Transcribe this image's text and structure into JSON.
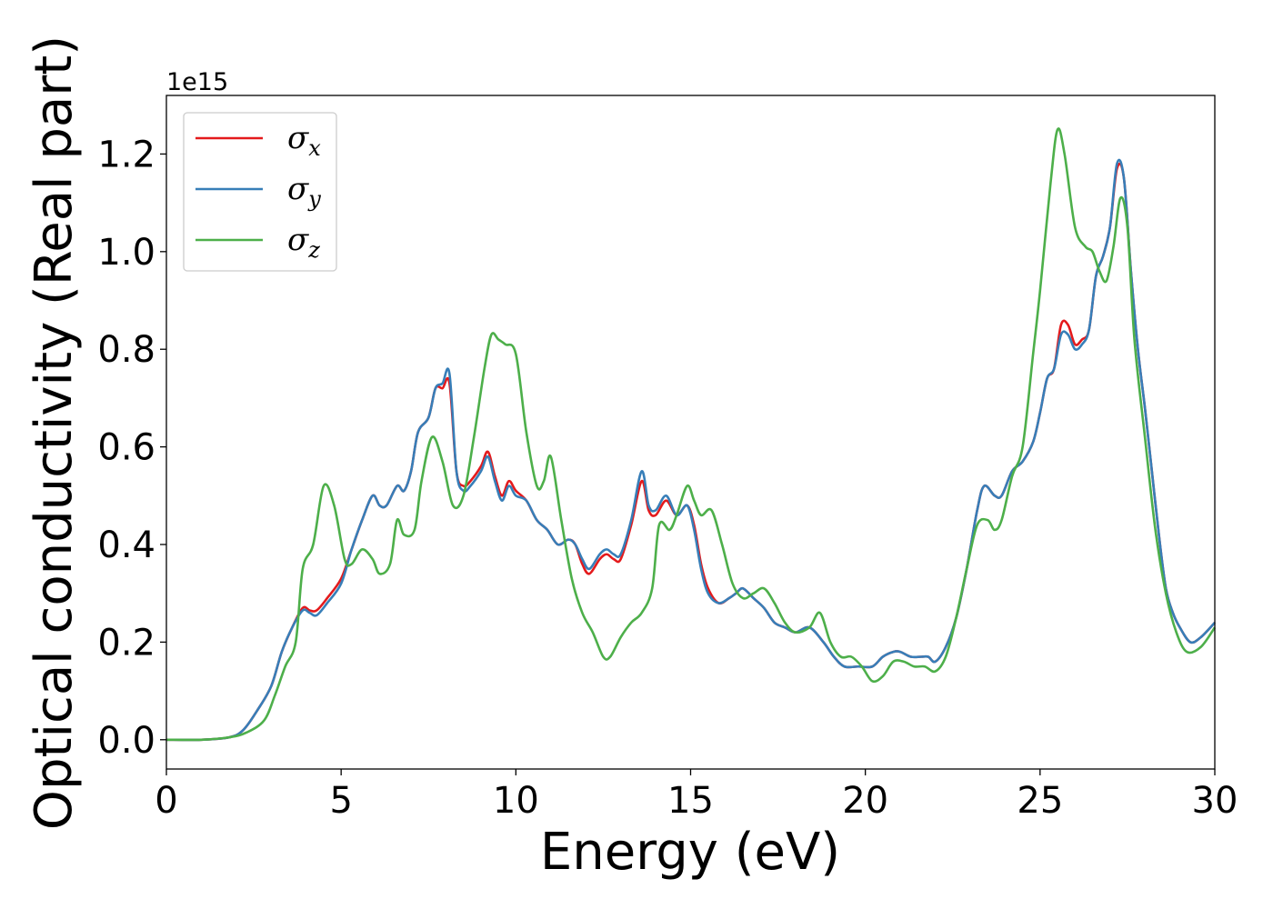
{
  "chart_data": {
    "type": "line",
    "xlabel": "Energy (eV)",
    "ylabel": "Optical conductivity (Real part)",
    "y_offset_label": "1e15",
    "xlim": [
      0,
      30
    ],
    "ylim": [
      -0.06,
      1.32
    ],
    "xticks": [
      0,
      5,
      10,
      15,
      20,
      25,
      30
    ],
    "yticks": [
      0.0,
      0.2,
      0.4,
      0.6,
      0.8,
      1.0,
      1.2
    ],
    "ytick_labels": [
      "0.0",
      "0.2",
      "0.4",
      "0.6",
      "0.8",
      "1.0",
      "1.2"
    ],
    "grid": false,
    "legend_position": "upper-left",
    "series": [
      {
        "name": "σx",
        "legend_base": "σ",
        "legend_sub": "x",
        "color": "#e41a1c",
        "x": [
          0,
          1,
          1.8,
          2.2,
          2.6,
          3.0,
          3.3,
          3.6,
          3.9,
          4.1,
          4.3,
          4.6,
          5.0,
          5.3,
          5.6,
          5.9,
          6.1,
          6.3,
          6.6,
          6.8,
          7.0,
          7.2,
          7.5,
          7.7,
          7.9,
          8.1,
          8.3,
          8.5,
          8.7,
          9.0,
          9.2,
          9.4,
          9.6,
          9.8,
          10.0,
          10.3,
          10.6,
          10.9,
          11.2,
          11.5,
          11.7,
          11.9,
          12.1,
          12.4,
          12.6,
          12.8,
          13.0,
          13.3,
          13.6,
          13.8,
          14.0,
          14.3,
          14.6,
          14.9,
          15.1,
          15.3,
          15.5,
          15.8,
          16.1,
          16.3,
          16.5,
          16.8,
          17.1,
          17.4,
          17.7,
          18.0,
          18.4,
          18.8,
          19.1,
          19.4,
          19.8,
          20.2,
          20.5,
          20.8,
          21.0,
          21.3,
          21.6,
          21.8,
          22.0,
          22.3,
          22.6,
          22.9,
          23.2,
          23.4,
          23.7,
          23.9,
          24.2,
          24.5,
          24.8,
          25.0,
          25.2,
          25.4,
          25.6,
          25.8,
          26.0,
          26.2,
          26.4,
          26.6,
          26.8,
          27.0,
          27.2,
          27.4,
          27.6,
          27.8,
          28.0,
          28.2,
          28.4,
          28.6,
          28.8,
          29.0,
          29.3,
          29.6,
          30.0
        ],
        "y": [
          0.0,
          0.0,
          0.005,
          0.02,
          0.06,
          0.11,
          0.18,
          0.23,
          0.27,
          0.265,
          0.265,
          0.29,
          0.33,
          0.39,
          0.45,
          0.5,
          0.48,
          0.48,
          0.52,
          0.51,
          0.55,
          0.63,
          0.66,
          0.72,
          0.72,
          0.73,
          0.55,
          0.52,
          0.53,
          0.56,
          0.59,
          0.54,
          0.5,
          0.53,
          0.51,
          0.49,
          0.45,
          0.43,
          0.4,
          0.41,
          0.4,
          0.36,
          0.34,
          0.37,
          0.38,
          0.37,
          0.37,
          0.44,
          0.53,
          0.47,
          0.46,
          0.49,
          0.46,
          0.48,
          0.44,
          0.36,
          0.31,
          0.28,
          0.29,
          0.3,
          0.31,
          0.29,
          0.27,
          0.24,
          0.23,
          0.22,
          0.23,
          0.2,
          0.17,
          0.15,
          0.15,
          0.15,
          0.17,
          0.18,
          0.18,
          0.17,
          0.17,
          0.17,
          0.16,
          0.19,
          0.25,
          0.35,
          0.47,
          0.52,
          0.5,
          0.5,
          0.55,
          0.57,
          0.61,
          0.67,
          0.74,
          0.76,
          0.85,
          0.85,
          0.81,
          0.82,
          0.84,
          0.95,
          0.99,
          1.05,
          1.17,
          1.15,
          0.96,
          0.8,
          0.68,
          0.55,
          0.42,
          0.31,
          0.26,
          0.23,
          0.2,
          0.21,
          0.24
        ]
      },
      {
        "name": "σy",
        "legend_base": "σ",
        "legend_sub": "y",
        "color": "#377eb8",
        "x": [
          0,
          1,
          1.8,
          2.2,
          2.6,
          3.0,
          3.3,
          3.6,
          3.9,
          4.1,
          4.3,
          4.6,
          5.0,
          5.3,
          5.6,
          5.9,
          6.1,
          6.3,
          6.6,
          6.8,
          7.0,
          7.2,
          7.5,
          7.7,
          7.9,
          8.1,
          8.3,
          8.5,
          8.7,
          9.0,
          9.2,
          9.4,
          9.6,
          9.8,
          10.0,
          10.3,
          10.6,
          10.9,
          11.2,
          11.5,
          11.7,
          11.9,
          12.1,
          12.4,
          12.6,
          12.8,
          13.0,
          13.3,
          13.6,
          13.8,
          14.0,
          14.3,
          14.6,
          14.9,
          15.1,
          15.3,
          15.5,
          15.8,
          16.1,
          16.3,
          16.5,
          16.8,
          17.1,
          17.4,
          17.7,
          18.0,
          18.4,
          18.8,
          19.1,
          19.4,
          19.8,
          20.2,
          20.5,
          20.8,
          21.0,
          21.3,
          21.6,
          21.8,
          22.0,
          22.3,
          22.6,
          22.9,
          23.2,
          23.4,
          23.7,
          23.9,
          24.2,
          24.5,
          24.8,
          25.0,
          25.2,
          25.4,
          25.6,
          25.8,
          26.0,
          26.2,
          26.4,
          26.6,
          26.8,
          27.0,
          27.2,
          27.4,
          27.6,
          27.8,
          28.0,
          28.2,
          28.4,
          28.6,
          28.8,
          29.0,
          29.3,
          29.6,
          30.0
        ],
        "y": [
          0.0,
          0.0,
          0.005,
          0.02,
          0.06,
          0.11,
          0.18,
          0.23,
          0.265,
          0.26,
          0.255,
          0.28,
          0.32,
          0.39,
          0.45,
          0.5,
          0.48,
          0.48,
          0.52,
          0.51,
          0.55,
          0.63,
          0.66,
          0.72,
          0.73,
          0.75,
          0.55,
          0.51,
          0.52,
          0.55,
          0.58,
          0.53,
          0.49,
          0.52,
          0.5,
          0.49,
          0.45,
          0.43,
          0.4,
          0.41,
          0.4,
          0.37,
          0.35,
          0.38,
          0.39,
          0.38,
          0.38,
          0.45,
          0.55,
          0.48,
          0.47,
          0.5,
          0.46,
          0.48,
          0.43,
          0.35,
          0.3,
          0.28,
          0.29,
          0.3,
          0.31,
          0.29,
          0.27,
          0.24,
          0.23,
          0.22,
          0.23,
          0.2,
          0.17,
          0.15,
          0.15,
          0.15,
          0.17,
          0.18,
          0.18,
          0.17,
          0.17,
          0.17,
          0.16,
          0.19,
          0.25,
          0.35,
          0.47,
          0.52,
          0.5,
          0.5,
          0.55,
          0.57,
          0.61,
          0.67,
          0.74,
          0.76,
          0.83,
          0.83,
          0.8,
          0.81,
          0.84,
          0.95,
          0.99,
          1.05,
          1.18,
          1.15,
          0.96,
          0.8,
          0.68,
          0.55,
          0.42,
          0.31,
          0.26,
          0.23,
          0.2,
          0.21,
          0.24
        ]
      },
      {
        "name": "σz",
        "legend_base": "σ",
        "legend_sub": "z",
        "color": "#4daf4a",
        "x": [
          0,
          1,
          1.8,
          2.3,
          2.8,
          3.1,
          3.4,
          3.7,
          3.9,
          4.2,
          4.5,
          4.8,
          5.1,
          5.3,
          5.6,
          5.9,
          6.1,
          6.4,
          6.6,
          6.8,
          7.1,
          7.3,
          7.6,
          7.9,
          8.2,
          8.5,
          8.8,
          9.1,
          9.3,
          9.5,
          9.7,
          10.0,
          10.3,
          10.6,
          10.8,
          11.0,
          11.3,
          11.6,
          11.9,
          12.2,
          12.5,
          12.7,
          13.0,
          13.3,
          13.6,
          13.9,
          14.1,
          14.4,
          14.6,
          14.9,
          15.1,
          15.3,
          15.6,
          15.9,
          16.2,
          16.5,
          16.8,
          17.1,
          17.4,
          17.7,
          18.0,
          18.4,
          18.7,
          19.0,
          19.3,
          19.6,
          19.9,
          20.2,
          20.5,
          20.8,
          21.1,
          21.4,
          21.7,
          22.0,
          22.3,
          22.6,
          22.9,
          23.2,
          23.5,
          23.7,
          23.9,
          24.2,
          24.5,
          24.8,
          25.0,
          25.3,
          25.5,
          25.7,
          26.0,
          26.3,
          26.5,
          26.7,
          26.9,
          27.1,
          27.3,
          27.5,
          27.7,
          28.0,
          28.3,
          28.6,
          28.9,
          29.2,
          29.6,
          30.0
        ],
        "y": [
          0.0,
          0.0,
          0.005,
          0.015,
          0.04,
          0.09,
          0.15,
          0.2,
          0.35,
          0.4,
          0.52,
          0.48,
          0.37,
          0.36,
          0.39,
          0.37,
          0.34,
          0.36,
          0.45,
          0.42,
          0.43,
          0.53,
          0.62,
          0.57,
          0.48,
          0.5,
          0.62,
          0.76,
          0.83,
          0.82,
          0.81,
          0.79,
          0.63,
          0.52,
          0.53,
          0.58,
          0.45,
          0.33,
          0.26,
          0.22,
          0.17,
          0.17,
          0.21,
          0.24,
          0.26,
          0.31,
          0.44,
          0.43,
          0.46,
          0.52,
          0.49,
          0.46,
          0.47,
          0.4,
          0.32,
          0.29,
          0.3,
          0.31,
          0.28,
          0.24,
          0.22,
          0.23,
          0.26,
          0.2,
          0.17,
          0.17,
          0.15,
          0.12,
          0.13,
          0.16,
          0.16,
          0.15,
          0.15,
          0.14,
          0.17,
          0.25,
          0.35,
          0.44,
          0.45,
          0.43,
          0.45,
          0.54,
          0.6,
          0.79,
          0.92,
          1.14,
          1.25,
          1.2,
          1.05,
          1.01,
          1.0,
          0.96,
          0.94,
          1.01,
          1.11,
          1.05,
          0.82,
          0.62,
          0.43,
          0.3,
          0.22,
          0.18,
          0.19,
          0.23
        ]
      }
    ]
  }
}
